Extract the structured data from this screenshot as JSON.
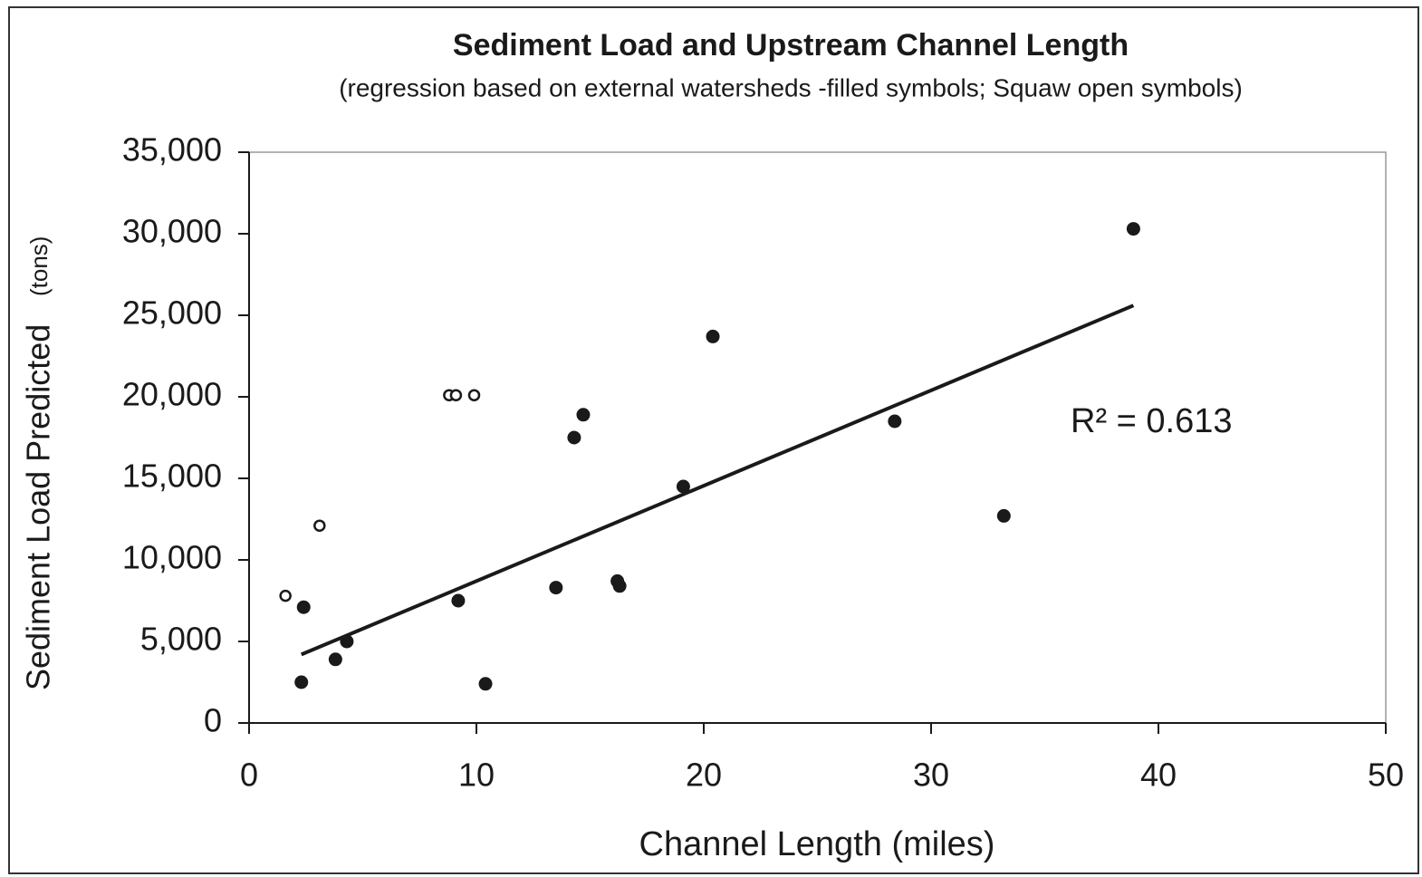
{
  "chart_data": {
    "type": "scatter",
    "title": "Sediment Load and Upstream Channel Length",
    "subtitle": "(regression based on external watersheds -filled symbols; Squaw open symbols)",
    "xlabel": "Channel Length (miles)",
    "ylabel": "Sediment Load Predicted",
    "ylabel_unit": "(tons)",
    "annotation": "R² = 0.613",
    "xlim": [
      0,
      50
    ],
    "xticks": [
      0,
      10,
      20,
      30,
      40,
      50
    ],
    "ylim": [
      0,
      35000
    ],
    "yticks": [
      0,
      {
        "value": 5000,
        "label": "5,000"
      },
      {
        "value": 10000,
        "label": "10,000"
      },
      {
        "value": 15000,
        "label": "15,000"
      },
      {
        "value": 20000,
        "label": "20,000"
      },
      {
        "value": 25000,
        "label": "25,000"
      },
      {
        "value": 30000,
        "label": "30,000"
      },
      {
        "value": 35000,
        "label": "35,000"
      }
    ],
    "series": [
      {
        "marker": "filled",
        "color": "#1a1a1a",
        "x": [
          2.3,
          2.4,
          3.8,
          4.3,
          9.2,
          10.4,
          13.5,
          14.3,
          14.7,
          16.2,
          16.3,
          19.1,
          20.4,
          28.4,
          33.2,
          38.9
        ],
        "values": [
          2500,
          7100,
          3900,
          5000,
          7500,
          2400,
          8300,
          17500,
          18900,
          8700,
          8400,
          14500,
          23700,
          18500,
          12700,
          30300
        ]
      },
      {
        "marker": "open",
        "color": "#1a1a1a",
        "x": [
          1.6,
          3.1,
          8.8,
          9.1,
          9.9
        ],
        "values": [
          7800,
          12100,
          20100,
          20100,
          20100
        ]
      }
    ],
    "trendline": {
      "color": "#1a1a1a",
      "x": [
        2.3,
        38.9
      ],
      "values": [
        4200,
        25600
      ]
    }
  }
}
